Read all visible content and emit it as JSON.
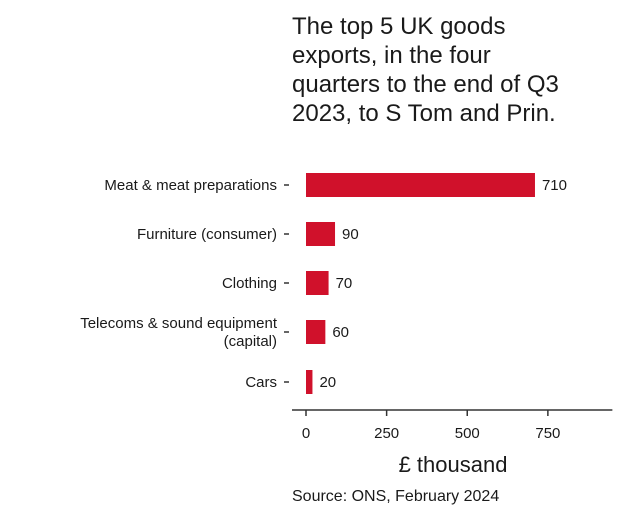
{
  "chart_data": {
    "type": "bar",
    "orientation": "horizontal",
    "title_lines": [
      "The top 5 UK goods",
      "exports, in the four",
      "quarters to the end of Q3",
      "2023, to S Tom and Prin."
    ],
    "categories": [
      [
        "Meat & meat preparations"
      ],
      [
        "Furniture (consumer)"
      ],
      [
        "Clothing"
      ],
      [
        "Telecoms & sound equipment",
        "(capital)"
      ],
      [
        "Cars"
      ]
    ],
    "values": [
      710,
      90,
      70,
      60,
      20
    ],
    "value_labels": [
      "710",
      "90",
      "70",
      "60",
      "20"
    ],
    "xlabel": "£ thousand",
    "xlim": [
      0,
      950
    ],
    "xticks": [
      0,
      250,
      500,
      750
    ],
    "xtick_labels": [
      "0",
      "250",
      "500",
      "750"
    ],
    "bar_color": "#d0112b",
    "grid": false,
    "source": "Source: ONS, February 2024"
  }
}
